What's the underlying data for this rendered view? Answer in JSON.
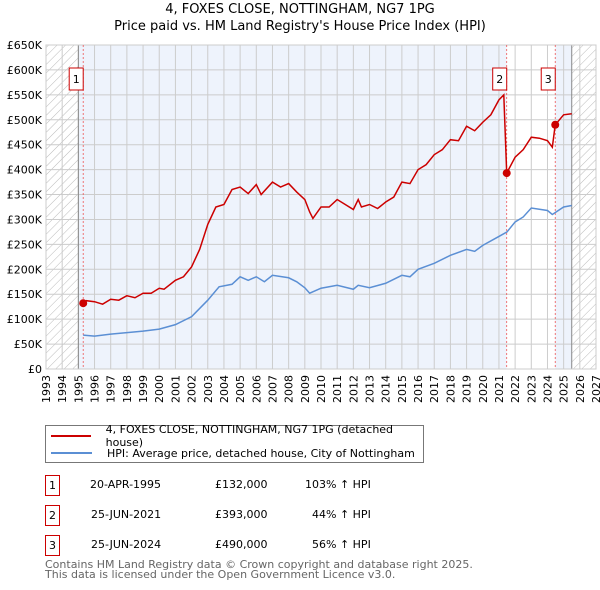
{
  "title": "4, FOXES CLOSE, NOTTINGHAM, NG7 1PG",
  "subtitle": "Price paid vs. HM Land Registry's House Price Index (HPI)",
  "chart_data": {
    "type": "line",
    "xlim": [
      1993,
      2027
    ],
    "ylim": [
      0,
      650000
    ],
    "xticks": [
      1993,
      1994,
      1995,
      1996,
      1997,
      1998,
      1999,
      2000,
      2001,
      2002,
      2003,
      2004,
      2005,
      2006,
      2007,
      2008,
      2009,
      2010,
      2011,
      2012,
      2013,
      2014,
      2015,
      2016,
      2017,
      2018,
      2019,
      2020,
      2021,
      2022,
      2023,
      2024,
      2025,
      2026,
      2027
    ],
    "yticks": [
      0,
      50000,
      100000,
      150000,
      200000,
      250000,
      300000,
      350000,
      400000,
      450000,
      500000,
      550000,
      600000,
      650000
    ],
    "ytick_labels": [
      "£0",
      "£50K",
      "£100K",
      "£150K",
      "£200K",
      "£250K",
      "£300K",
      "£350K",
      "£400K",
      "£450K",
      "£500K",
      "£550K",
      "£600K",
      "£650K"
    ],
    "data_range": [
      1995.0,
      2025.5
    ],
    "series": [
      {
        "name": "4, FOXES CLOSE, NOTTINGHAM, NG7 1PG (detached house)",
        "color": "#cc0000",
        "x": [
          1995.3,
          1995.5,
          1996,
          1996.5,
          1997,
          1997.5,
          1998,
          1998.5,
          1999,
          1999.5,
          2000,
          2000.3,
          2001,
          2001.5,
          2002,
          2002.5,
          2003,
          2003.5,
          2004,
          2004.5,
          2005,
          2005.5,
          2006,
          2006.3,
          2007,
          2007.5,
          2008,
          2008.5,
          2009,
          2009.3,
          2009.5,
          2010,
          2010.5,
          2011,
          2011.5,
          2012,
          2012.3,
          2012.5,
          2013,
          2013.5,
          2014,
          2014.5,
          2015,
          2015.5,
          2016,
          2016.5,
          2017,
          2017.5,
          2018,
          2018.5,
          2019,
          2019.5,
          2020,
          2020.5,
          2021,
          2021.3,
          2021.48,
          2022,
          2022.5,
          2023,
          2023.5,
          2024,
          2024.3,
          2024.48,
          2025,
          2025.5
        ],
        "y": [
          132000,
          137000,
          135000,
          130000,
          140000,
          138000,
          147000,
          143000,
          152000,
          152000,
          162000,
          160000,
          178000,
          185000,
          205000,
          240000,
          290000,
          325000,
          330000,
          360000,
          365000,
          352000,
          370000,
          350000,
          375000,
          365000,
          372000,
          355000,
          340000,
          315000,
          302000,
          325000,
          325000,
          340000,
          330000,
          320000,
          340000,
          325000,
          330000,
          322000,
          335000,
          345000,
          375000,
          372000,
          400000,
          410000,
          430000,
          440000,
          460000,
          458000,
          487000,
          478000,
          495000,
          510000,
          540000,
          550000,
          393000,
          425000,
          440000,
          465000,
          463000,
          458000,
          445000,
          490000,
          510000,
          512000
        ]
      },
      {
        "name": "HPI: Average price, detached house, City of Nottingham",
        "color": "#5b8fd4",
        "x": [
          1995.3,
          1996,
          1997,
          1998,
          1999,
          2000,
          2001,
          2002,
          2003,
          2003.7,
          2004.5,
          2005,
          2005.5,
          2006,
          2006.5,
          2007,
          2008,
          2008.5,
          2009,
          2009.3,
          2010,
          2011,
          2012,
          2012.3,
          2013,
          2014,
          2015,
          2015.5,
          2016,
          2017,
          2018,
          2019,
          2019.5,
          2020,
          2021,
          2021.5,
          2022,
          2022.5,
          2023,
          2024,
          2024.3,
          2025,
          2025.5
        ],
        "y": [
          68000,
          66000,
          70000,
          73000,
          76000,
          80000,
          89000,
          105000,
          138000,
          165000,
          170000,
          185000,
          178000,
          185000,
          175000,
          188000,
          183000,
          175000,
          163000,
          152000,
          162000,
          168000,
          160000,
          168000,
          163000,
          172000,
          188000,
          185000,
          200000,
          212000,
          228000,
          240000,
          236000,
          248000,
          266000,
          275000,
          295000,
          305000,
          323000,
          318000,
          310000,
          325000,
          328000
        ]
      }
    ],
    "sales": [
      {
        "label": "1",
        "x": 1995.3,
        "date": "20-APR-1995",
        "price_value": 132000,
        "price": "£132,000",
        "hpi": "103% ↑ HPI"
      },
      {
        "label": "2",
        "x": 2021.48,
        "date": "25-JUN-2021",
        "price_value": 393000,
        "price": "£393,000",
        "hpi": "44% ↑ HPI"
      },
      {
        "label": "3",
        "x": 2024.48,
        "date": "25-JUN-2024",
        "price_value": 490000,
        "price": "£490,000",
        "hpi": "56% ↑ HPI"
      }
    ]
  },
  "footer": {
    "line1": "Contains HM Land Registry data © Crown copyright and database right 2025.",
    "line2": "This data is licensed under the Open Government Licence v3.0."
  }
}
